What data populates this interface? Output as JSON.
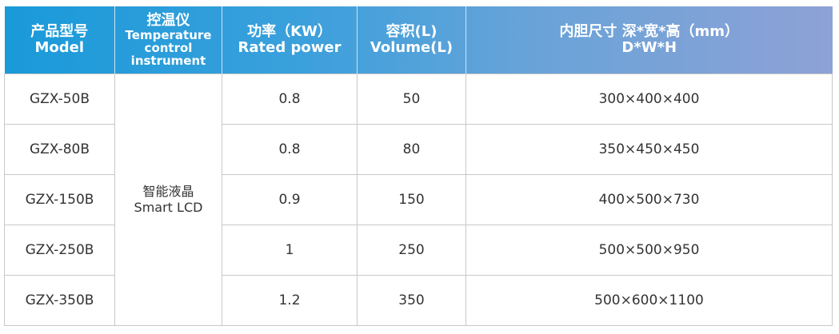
{
  "header": {
    "model": {
      "zh": "产品型号",
      "en": "Model"
    },
    "control": {
      "zh": "控温仪",
      "en": "Temperature control instrument"
    },
    "power": {
      "zh": "功率（KW）",
      "en": "Rated power"
    },
    "volume": {
      "zh": "容积(L)",
      "en": "Volume(L)"
    },
    "size": {
      "zh": "内胆尺寸 深*宽*高（mm）",
      "en": "D*W*H"
    }
  },
  "control_value": {
    "zh": "智能液晶",
    "en": "Smart LCD"
  },
  "rows": [
    {
      "model": "GZX-50B",
      "power": "0.8",
      "volume": "50",
      "size": "300×400×400"
    },
    {
      "model": "GZX-80B",
      "power": "0.8",
      "volume": "80",
      "size": "350×450×450"
    },
    {
      "model": "GZX-150B",
      "power": "0.9",
      "volume": "150",
      "size": "400×500×730"
    },
    {
      "model": "GZX-250B",
      "power": "1",
      "volume": "250",
      "size": "500×500×950"
    },
    {
      "model": "GZX-350B",
      "power": "1.2",
      "volume": "350",
      "size": "500×600×1100"
    }
  ],
  "colors": {
    "header_start": "#199ad9",
    "header_end": "#8ea2d6"
  }
}
